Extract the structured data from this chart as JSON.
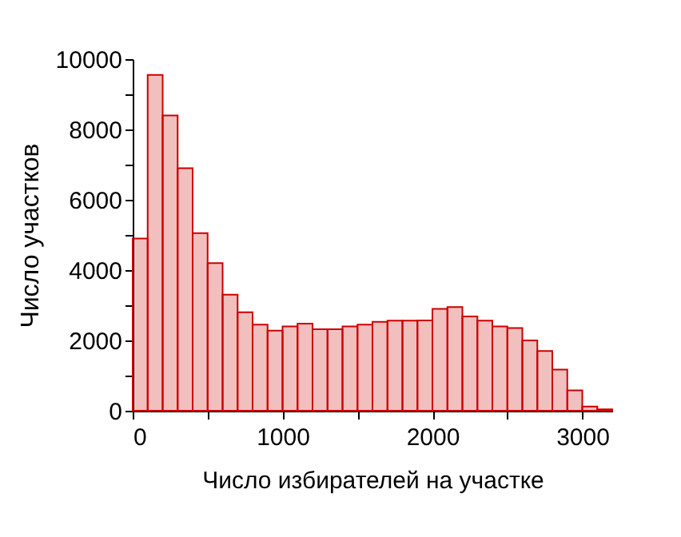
{
  "chart_data": {
    "type": "histogram",
    "xlabel": "Число избирателей на участке",
    "ylabel": "Число участков",
    "color": "#cc0000",
    "bins": [
      0,
      100,
      200,
      300,
      400,
      500,
      600,
      700,
      800,
      900,
      1000,
      1100,
      1200,
      1300,
      1400,
      1500,
      1600,
      1700,
      1800,
      1900,
      2000,
      2100,
      2200,
      2300,
      2400,
      2500,
      2600,
      2700,
      2800,
      2900,
      3000,
      3100,
      3200
    ],
    "values": [
      4900,
      9550,
      8400,
      6900,
      5050,
      4200,
      3300,
      2800,
      2450,
      2280,
      2400,
      2480,
      2320,
      2320,
      2400,
      2450,
      2530,
      2560,
      2560,
      2570,
      2900,
      2950,
      2680,
      2560,
      2400,
      2350,
      2000,
      1700,
      1170,
      580,
      120,
      40
    ],
    "xlim": [
      0,
      3200
    ],
    "ylim": [
      0,
      10000
    ],
    "xticks": [
      0,
      {
        "value": 500,
        "label": null
      },
      1000,
      {
        "value": 1500,
        "label": null
      },
      2000,
      {
        "value": 2500,
        "label": null
      },
      3000
    ],
    "yticks": [
      0,
      {
        "value": 1000,
        "label": null
      },
      2000,
      {
        "value": 3000,
        "label": null
      },
      4000,
      {
        "value": 5000,
        "label": null
      },
      6000,
      {
        "value": 7000,
        "label": null
      },
      8000,
      {
        "value": 9000,
        "label": null
      },
      10000
    ],
    "grid": false
  }
}
